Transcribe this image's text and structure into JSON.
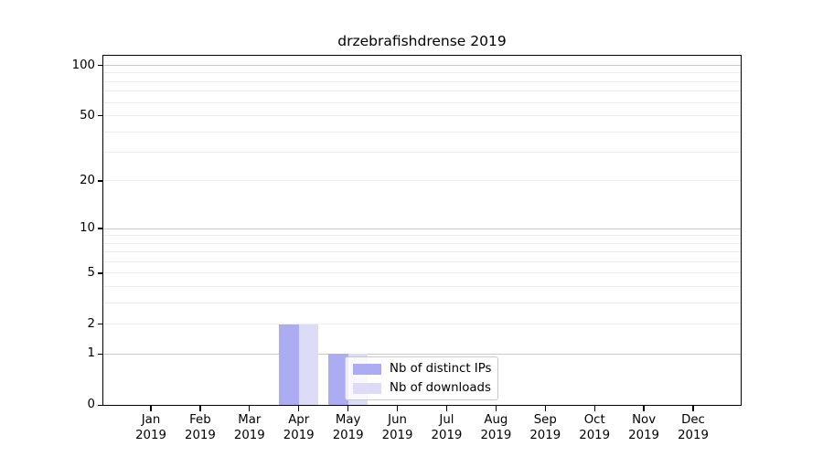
{
  "title": "drzebrafishdrense 2019",
  "legend": {
    "items": [
      {
        "label": "Nb of distinct IPs",
        "color": "#abacf2"
      },
      {
        "label": "Nb of downloads",
        "color": "#dddcf7"
      }
    ]
  },
  "chart_data": {
    "type": "bar",
    "title": "drzebrafishdrense 2019",
    "categories": [
      "Jan 2019",
      "Feb 2019",
      "Mar 2019",
      "Apr 2019",
      "May 2019",
      "Jun 2019",
      "Jul 2019",
      "Aug 2019",
      "Sep 2019",
      "Oct 2019",
      "Nov 2019",
      "Dec 2019"
    ],
    "x_tick_months": [
      "Jan",
      "Feb",
      "Mar",
      "Apr",
      "May",
      "Jun",
      "Jul",
      "Aug",
      "Sep",
      "Oct",
      "Nov",
      "Dec"
    ],
    "x_tick_year": "2019",
    "series": [
      {
        "name": "Nb of distinct IPs",
        "color": "#abacf2",
        "values": [
          0,
          0,
          0,
          2,
          1,
          0,
          0,
          0,
          0,
          0,
          0,
          0
        ]
      },
      {
        "name": "Nb of downloads",
        "color": "#dddcf7",
        "values": [
          0,
          0,
          0,
          2,
          1,
          0,
          0,
          0,
          0,
          0,
          0,
          0
        ]
      }
    ],
    "yscale": "log1p",
    "ylim": [
      0,
      114
    ],
    "y_tick_values": [
      0,
      1,
      2,
      5,
      10,
      20,
      50,
      100
    ],
    "y_tick_labels": [
      "0",
      "1",
      "2",
      "5",
      "10",
      "20",
      "50",
      "100"
    ],
    "y_major_gridlines": [
      1,
      10,
      100
    ],
    "y_minor_gridlines": [
      2,
      3,
      4,
      5,
      6,
      7,
      8,
      9,
      20,
      30,
      40,
      50,
      60,
      70,
      80,
      90
    ],
    "grid": "horizontal",
    "legend_position": "inside lower right",
    "colors": {
      "major_grid": "#c9c9c9",
      "minor_grid": "#ececec",
      "axis": "#000000",
      "background": "#ffffff"
    }
  }
}
